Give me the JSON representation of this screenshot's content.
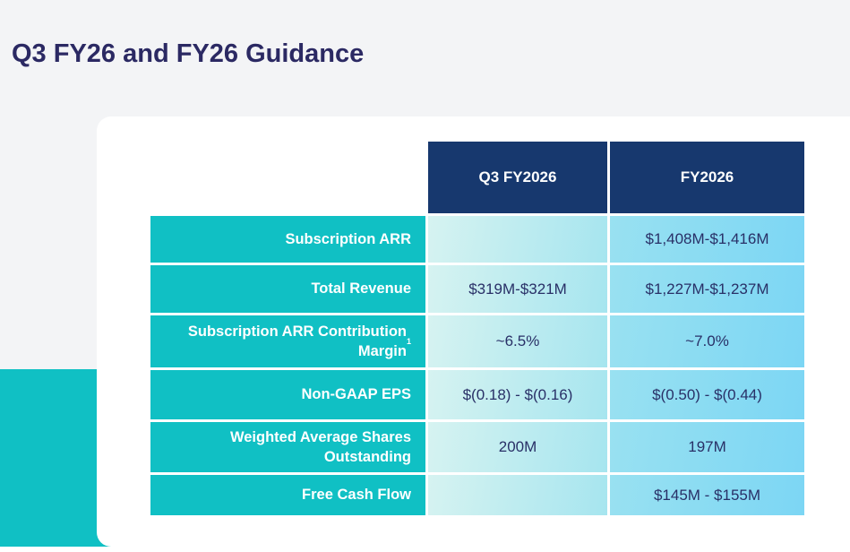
{
  "page": {
    "title": "Q3 FY26 and FY26 Guidance"
  },
  "table": {
    "columns": [
      "Q3 FY2026",
      "FY2026"
    ],
    "rows": [
      {
        "label": "Subscription ARR",
        "sup": "",
        "q3": "",
        "fy": "$1,408M-$1,416M"
      },
      {
        "label": "Total Revenue",
        "sup": "",
        "q3": "$319M-$321M",
        "fy": "$1,227M-$1,237M"
      },
      {
        "label": "Subscription ARR Contribution Margin",
        "sup": "1",
        "q3": "~6.5%",
        "fy": "~7.0%"
      },
      {
        "label": "Non-GAAP EPS",
        "sup": "",
        "q3": "$(0.18) - $(0.16)",
        "fy": "$(0.50) - $(0.44)"
      },
      {
        "label": "Weighted Average Shares Outstanding",
        "sup": "",
        "q3": "200M",
        "fy": "197M"
      },
      {
        "label": "Free Cash Flow",
        "sup": "",
        "q3": "",
        "fy": "$145M - $155M"
      }
    ]
  },
  "colors": {
    "accent_teal": "#10c0c4",
    "header_navy": "#17386e",
    "title_navy": "#2b2963",
    "value_navy": "#293067",
    "background_gray": "#f3f4f6",
    "q3_cell_gradient_start": "#d6f3f1",
    "q3_cell_gradient_end": "#a6e5ef",
    "fy_cell_gradient_start": "#99e1f1",
    "fy_cell_gradient_end": "#7cd6f4"
  }
}
